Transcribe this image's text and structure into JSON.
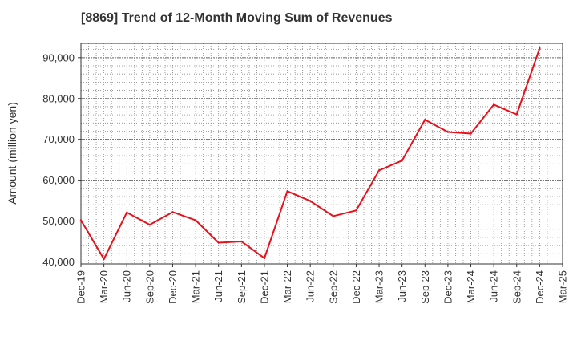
{
  "chart_data": {
    "type": "line",
    "title": "[8869]  Trend of 12-Month Moving Sum of Revenues",
    "xlabel": "",
    "ylabel": "Amount (million yen)",
    "ylim": [
      39500,
      93500
    ],
    "yticks": [
      40000,
      50000,
      60000,
      70000,
      80000,
      90000
    ],
    "ytick_labels": [
      "40,000",
      "50,000",
      "60,000",
      "70,000",
      "80,000",
      "90,000"
    ],
    "categories": [
      "Dec-19",
      "Mar-20",
      "Jun-20",
      "Sep-20",
      "Dec-20",
      "Mar-21",
      "Jun-21",
      "Sep-21",
      "Dec-21",
      "Mar-22",
      "Jun-22",
      "Sep-22",
      "Dec-22",
      "Mar-23",
      "Jun-23",
      "Sep-23",
      "Dec-23",
      "Mar-24",
      "Jun-24",
      "Sep-24",
      "Dec-24",
      "Mar-25"
    ],
    "grid": true,
    "line_color": "#e8101a",
    "series": [
      {
        "values": [
          50200,
          40700,
          52100,
          49100,
          52200,
          50200,
          44700,
          45000,
          40900,
          57300,
          54900,
          51200,
          52600,
          62400,
          64800,
          74800,
          71800,
          71400,
          78500,
          76100,
          92300,
          null
        ]
      }
    ]
  }
}
